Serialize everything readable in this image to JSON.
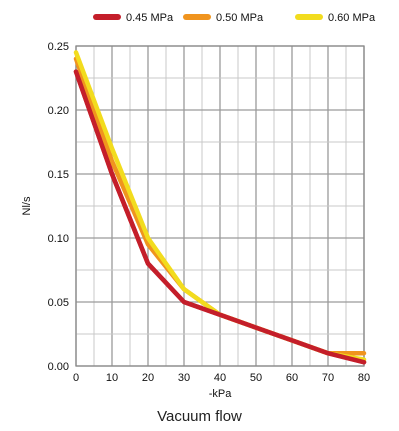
{
  "caption": "Vacuum flow",
  "chart_data": {
    "type": "line",
    "xlabel": "-kPa",
    "ylabel": "Nl/s",
    "xlim": [
      0,
      80
    ],
    "ylim": [
      0,
      0.25
    ],
    "x_ticks": [
      0,
      10,
      20,
      30,
      40,
      50,
      60,
      70,
      80
    ],
    "y_ticks": [
      0.0,
      0.05,
      0.1,
      0.15,
      0.2,
      0.25
    ],
    "x_tick_labels": [
      "0",
      "10",
      "20",
      "30",
      "40",
      "50",
      "60",
      "70",
      "80"
    ],
    "y_tick_labels": [
      "0.00",
      "0.05",
      "0.10",
      "0.15",
      "0.20",
      "0.25"
    ],
    "grid": true,
    "legend_position": "top",
    "series": [
      {
        "name": "0.45 MPa",
        "color": "#c41e2a",
        "x": [
          0,
          10,
          20,
          30,
          40,
          50,
          60,
          70,
          80
        ],
        "y": [
          0.23,
          0.15,
          0.08,
          0.05,
          0.04,
          0.03,
          0.02,
          0.01,
          0.003
        ]
      },
      {
        "name": "0.50 MPa",
        "color": "#f0941e",
        "x": [
          0,
          10,
          20,
          30,
          40,
          50,
          60,
          70,
          80
        ],
        "y": [
          0.24,
          0.16,
          0.095,
          0.06,
          0.04,
          0.03,
          0.02,
          0.01,
          0.01
        ]
      },
      {
        "name": "0.60 MPa",
        "color": "#f2dc1e",
        "x": [
          0,
          10,
          20,
          30,
          40,
          50,
          60,
          70,
          80
        ],
        "y": [
          0.245,
          0.17,
          0.1,
          0.06,
          0.04,
          0.03,
          0.02,
          0.01,
          0.005
        ]
      }
    ]
  }
}
